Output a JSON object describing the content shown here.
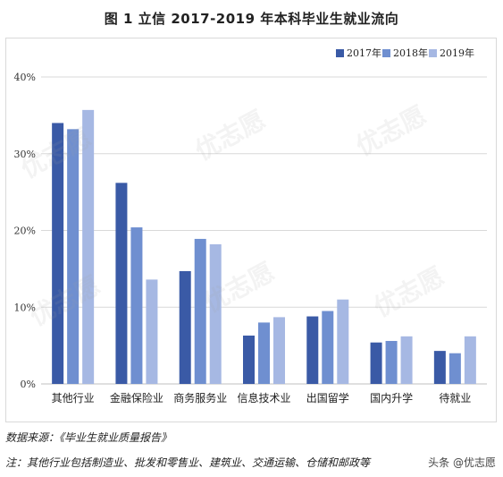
{
  "title": "图 1 立信 2017-2019 年本科毕业生就业流向",
  "source_note": "数据来源：《毕业生就业质量报告》",
  "footnote": "注：其他行业包括制造业、批发和零售业、建筑业、交通运输、仓储和邮政等",
  "credit": "头条 @优志愿",
  "watermark_text": "优志愿",
  "colors": {
    "s2017": "#3a5aa6",
    "s2018": "#6f8fd0",
    "s2019": "#a6b8e3",
    "grid": "#d9d9d9",
    "axis": "#bfbfbf"
  },
  "chart_data": {
    "type": "bar",
    "title": "图 1 立信 2017-2019 年本科毕业生就业流向",
    "categories": [
      "其他行业",
      "金融保险业",
      "商务服务业",
      "信息技术业",
      "出国留学",
      "国内升学",
      "待就业"
    ],
    "series": [
      {
        "name": "2017年",
        "values": [
          34.0,
          26.2,
          14.7,
          6.3,
          8.8,
          5.4,
          4.3
        ]
      },
      {
        "name": "2018年",
        "values": [
          33.2,
          20.4,
          18.9,
          8.0,
          9.5,
          5.6,
          4.0
        ]
      },
      {
        "name": "2019年",
        "values": [
          35.7,
          13.6,
          18.2,
          8.7,
          11.0,
          6.2,
          6.2
        ]
      }
    ],
    "ylim": [
      0,
      40
    ],
    "yticks": [
      "0%",
      "10%",
      "20%",
      "30%",
      "40%"
    ],
    "legend_position": "top-right",
    "grid": true
  }
}
